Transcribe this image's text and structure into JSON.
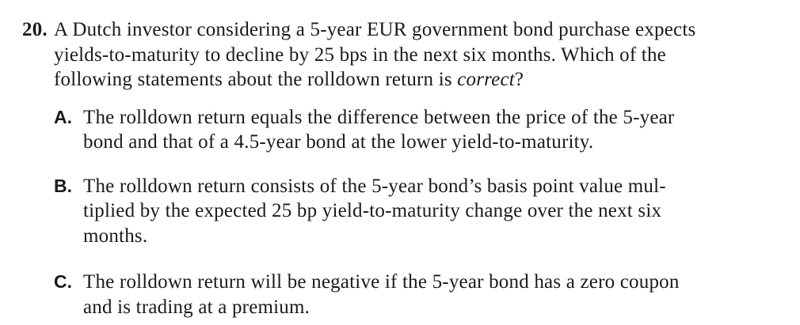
{
  "page": {
    "background_color": "#ffffff",
    "text_color": "#1a1a1a"
  },
  "question": {
    "number": "20.",
    "stem_lines": [
      "A Dutch investor considering a 5-year EUR government bond purchase expects",
      "yields-to-maturity to decline by 25 bps in the next six months. Which of the"
    ],
    "stem_tail": {
      "prefix": "following statements about the rolldown return is ",
      "italic": "correct",
      "suffix": "?"
    },
    "options": [
      {
        "letter": "A.",
        "lines": [
          "The rolldown return equals the difference between the price of the 5-year",
          "bond and that of a 4.5-year bond at the lower yield-to-maturity."
        ]
      },
      {
        "letter": "B.",
        "lines": [
          "The rolldown return consists of the 5-year bond’s basis point value mul-",
          "tiplied by the expected 25 bp yield-to-maturity change over the next six",
          "months."
        ]
      },
      {
        "letter": "C.",
        "lines": [
          "The rolldown return will be negative if the 5-year bond has a zero coupon",
          "and is trading at a premium."
        ]
      }
    ]
  }
}
